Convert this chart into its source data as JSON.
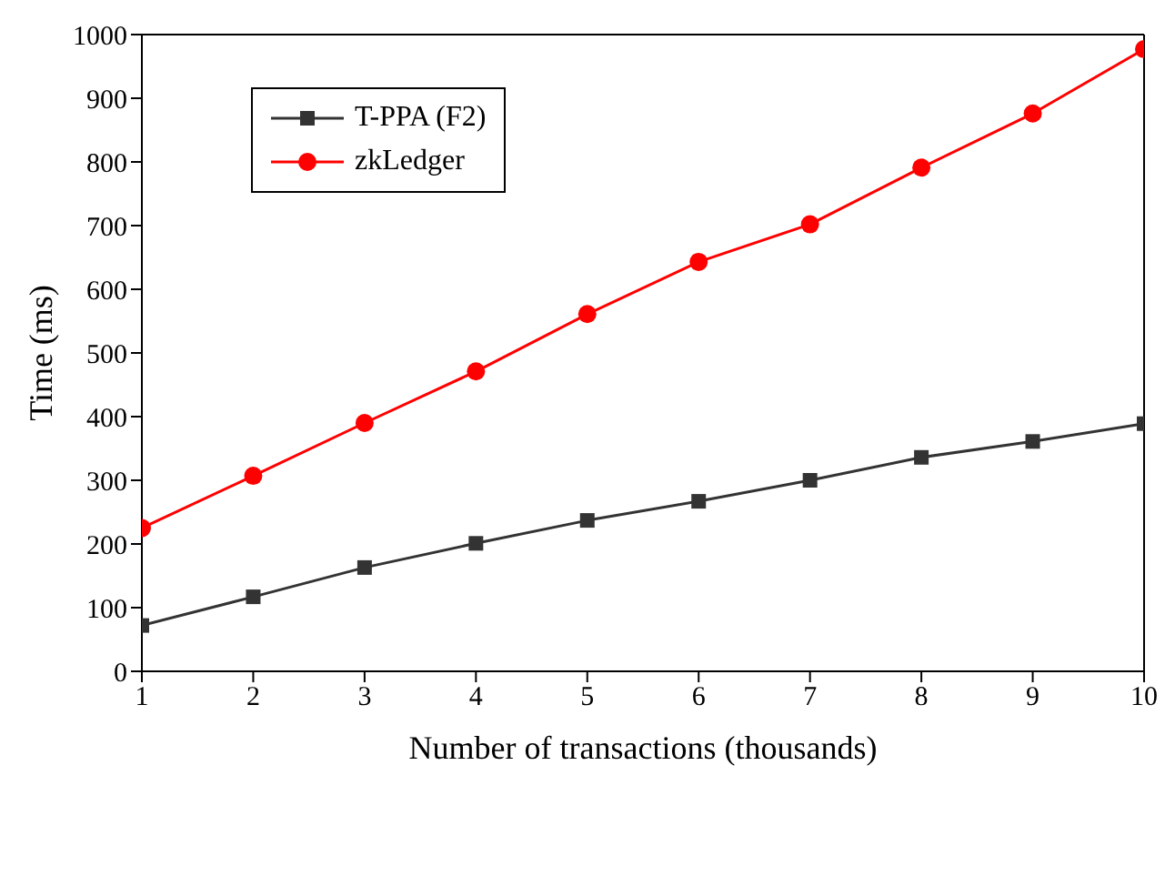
{
  "chart_data": {
    "type": "line",
    "xlabel": "Number of transactions (thousands)",
    "ylabel": "Time (ms)",
    "x": [
      1,
      2,
      3,
      4,
      5,
      6,
      7,
      8,
      9,
      10
    ],
    "series": [
      {
        "name": "T-PPA (F2)",
        "color": "#333333",
        "marker": "square",
        "values": [
          72,
          117,
          163,
          201,
          237,
          267,
          300,
          336,
          361,
          389
        ]
      },
      {
        "name": "zkLedger",
        "color": "#ff0000",
        "marker": "circle",
        "values": [
          225,
          307,
          390,
          471,
          561,
          643,
          702,
          791,
          876,
          977
        ]
      }
    ],
    "xlim": [
      1,
      10
    ],
    "xticks": [
      1,
      2,
      3,
      4,
      5,
      6,
      7,
      8,
      9,
      10
    ],
    "ylim": [
      0,
      1000
    ],
    "yticks": [
      0,
      100,
      200,
      300,
      400,
      500,
      600,
      700,
      800,
      900,
      1000
    ],
    "grid": false,
    "legend": "top left"
  }
}
